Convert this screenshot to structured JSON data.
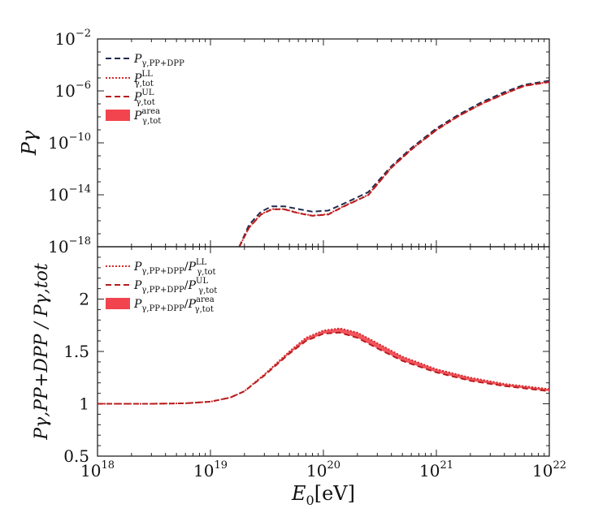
{
  "chart_data": [
    {
      "panel": "top",
      "type": "line",
      "xscale": "log",
      "yscale": "log",
      "xlim": [
        1e+18,
        1e+22
      ],
      "ylim": [
        1e-18,
        0.01
      ],
      "ylabel": "Pγ",
      "ytick_labels": [
        {
          "base": "10",
          "exp": "−18"
        },
        {
          "base": "10",
          "exp": "−14"
        },
        {
          "base": "10",
          "exp": "−10"
        },
        {
          "base": "10",
          "exp": "−6"
        },
        {
          "base": "10",
          "exp": "−2"
        }
      ],
      "legend": {
        "position": "top-left",
        "entries": [
          {
            "main": "P",
            "sub": "γ,PP+DPP",
            "sup": "",
            "style": "dashed-navy"
          },
          {
            "main": "P",
            "sub": "γ,tot",
            "sup": "LL",
            "style": "dotted-red"
          },
          {
            "main": "P",
            "sub": "γ,tot",
            "sup": "UL",
            "style": "dashed-red"
          },
          {
            "main": "P",
            "sub": "γ,tot",
            "sup": "area",
            "style": "fill-red"
          }
        ]
      },
      "series": [
        {
          "name": "P_gamma,PP+DPP",
          "style": "dashed-navy",
          "points": [
            [
              1.8e+19,
              1e-18
            ],
            [
              2.2e+19,
              5e-17
            ],
            [
              2.8e+19,
              5e-16
            ],
            [
              3.5e+19,
              1.3e-15
            ],
            [
              4.5e+19,
              1.3e-15
            ],
            [
              6e+19,
              8e-16
            ],
            [
              8e+19,
              5e-16
            ],
            [
              1.1e+20,
              6e-16
            ],
            [
              1.5e+20,
              2e-15
            ],
            [
              2.5e+20,
              1.6e-14
            ],
            [
              4e+20,
              1.6e-12
            ],
            [
              6e+20,
              4e-11
            ],
            [
              1e+21,
              1.3e-09
            ],
            [
              1.6e+21,
              1.6e-08
            ],
            [
              2.5e+21,
              1.3e-07
            ],
            [
              4e+21,
              8e-07
            ],
            [
              6e+21,
              3e-06
            ],
            [
              1e+22,
              6e-06
            ]
          ]
        },
        {
          "name": "P_gamma,tot LL",
          "style": "dotted-red",
          "points": [
            [
              1.8e+19,
              1e-18
            ],
            [
              2.2e+19,
              3.2e-17
            ],
            [
              2.8e+19,
              3.2e-16
            ],
            [
              3.5e+19,
              8e-16
            ],
            [
              4.5e+19,
              8e-16
            ],
            [
              6e+19,
              4e-16
            ],
            [
              8e+19,
              2.5e-16
            ],
            [
              1.1e+20,
              3.2e-16
            ],
            [
              1.5e+20,
              1.3e-15
            ],
            [
              2.5e+20,
              1e-14
            ],
            [
              4e+20,
              1.3e-12
            ],
            [
              6e+20,
              3.2e-11
            ],
            [
              1e+21,
              1e-09
            ],
            [
              1.6e+21,
              1.3e-08
            ],
            [
              2.5e+21,
              1e-07
            ],
            [
              4e+21,
              6e-07
            ],
            [
              6e+21,
              2.5e-06
            ],
            [
              1e+22,
              5e-06
            ]
          ]
        },
        {
          "name": "P_gamma,tot UL",
          "style": "dashed-red",
          "points": [
            [
              1.8e+19,
              1e-18
            ],
            [
              2.2e+19,
              3e-17
            ],
            [
              2.8e+19,
              3e-16
            ],
            [
              3.5e+19,
              7.6e-16
            ],
            [
              4.5e+19,
              7.6e-16
            ],
            [
              6e+19,
              3.8e-16
            ],
            [
              8e+19,
              2.4e-16
            ],
            [
              1.1e+20,
              3e-16
            ],
            [
              1.5e+20,
              1.2e-15
            ],
            [
              2.5e+20,
              9.6e-15
            ],
            [
              4e+20,
              1.2e-12
            ],
            [
              6e+20,
              3e-11
            ],
            [
              1e+21,
              9.6e-10
            ],
            [
              1.6e+21,
              1.25e-08
            ],
            [
              2.5e+21,
              9.6e-08
            ],
            [
              4e+21,
              5.8e-07
            ],
            [
              6e+21,
              2.4e-06
            ],
            [
              1e+22,
              4.8e-06
            ]
          ]
        }
      ]
    },
    {
      "panel": "bottom",
      "type": "line",
      "xscale": "log",
      "yscale": "linear",
      "xlim": [
        1e+18,
        1e+22
      ],
      "ylim": [
        0.5,
        2.5
      ],
      "xlabel_main": "E",
      "xlabel_sub": "0",
      "xlabel_unit": "[eV]",
      "ylabel": "Pγ,PP+DPP / Pγ,tot",
      "xtick_labels": [
        {
          "base": "10",
          "exp": "18"
        },
        {
          "base": "10",
          "exp": "19"
        },
        {
          "base": "10",
          "exp": "20"
        },
        {
          "base": "10",
          "exp": "21"
        },
        {
          "base": "10",
          "exp": "22"
        }
      ],
      "yticks": [
        "0.5",
        "1",
        "1.5",
        "2"
      ],
      "legend": {
        "position": "top-left",
        "entries": [
          {
            "num_main": "P",
            "num_sub": "γ,PP+DPP",
            "den_main": "P",
            "den_sub": "γ,tot",
            "den_sup": "LL",
            "style": "dotted-red"
          },
          {
            "num_main": "P",
            "num_sub": "γ,PP+DPP",
            "den_main": "P",
            "den_sub": "γ,tot",
            "den_sup": "UL",
            "style": "dashed-red"
          },
          {
            "num_main": "P",
            "num_sub": "γ,PP+DPP",
            "den_main": "P",
            "den_sub": "γ,tot",
            "den_sup": "area",
            "style": "fill-red"
          }
        ]
      },
      "series": [
        {
          "name": "ratio LL",
          "style": "dotted-red",
          "points": [
            [
              1e+18,
              1.0
            ],
            [
              3e+18,
              1.0
            ],
            [
              6e+18,
              1.005
            ],
            [
              1e+19,
              1.02
            ],
            [
              1.5e+19,
              1.06
            ],
            [
              2e+19,
              1.12
            ],
            [
              3e+19,
              1.28
            ],
            [
              5e+19,
              1.5
            ],
            [
              7e+19,
              1.63
            ],
            [
              1e+20,
              1.7
            ],
            [
              1.4e+20,
              1.72
            ],
            [
              2e+20,
              1.68
            ],
            [
              3e+20,
              1.58
            ],
            [
              5e+20,
              1.45
            ],
            [
              1e+21,
              1.33
            ],
            [
              2e+21,
              1.25
            ],
            [
              4e+21,
              1.19
            ],
            [
              1e+22,
              1.14
            ]
          ]
        },
        {
          "name": "ratio UL",
          "style": "dashed-red",
          "points": [
            [
              1e+18,
              1.0
            ],
            [
              3e+18,
              1.0
            ],
            [
              6e+18,
              1.005
            ],
            [
              1e+19,
              1.02
            ],
            [
              1.5e+19,
              1.06
            ],
            [
              2e+19,
              1.12
            ],
            [
              3e+19,
              1.27
            ],
            [
              5e+19,
              1.48
            ],
            [
              7e+19,
              1.6
            ],
            [
              1e+20,
              1.67
            ],
            [
              1.4e+20,
              1.68
            ],
            [
              2e+20,
              1.63
            ],
            [
              3e+20,
              1.53
            ],
            [
              5e+20,
              1.41
            ],
            [
              1e+21,
              1.3
            ],
            [
              2e+21,
              1.22
            ],
            [
              4e+21,
              1.17
            ],
            [
              1e+22,
              1.12
            ]
          ]
        }
      ]
    }
  ]
}
